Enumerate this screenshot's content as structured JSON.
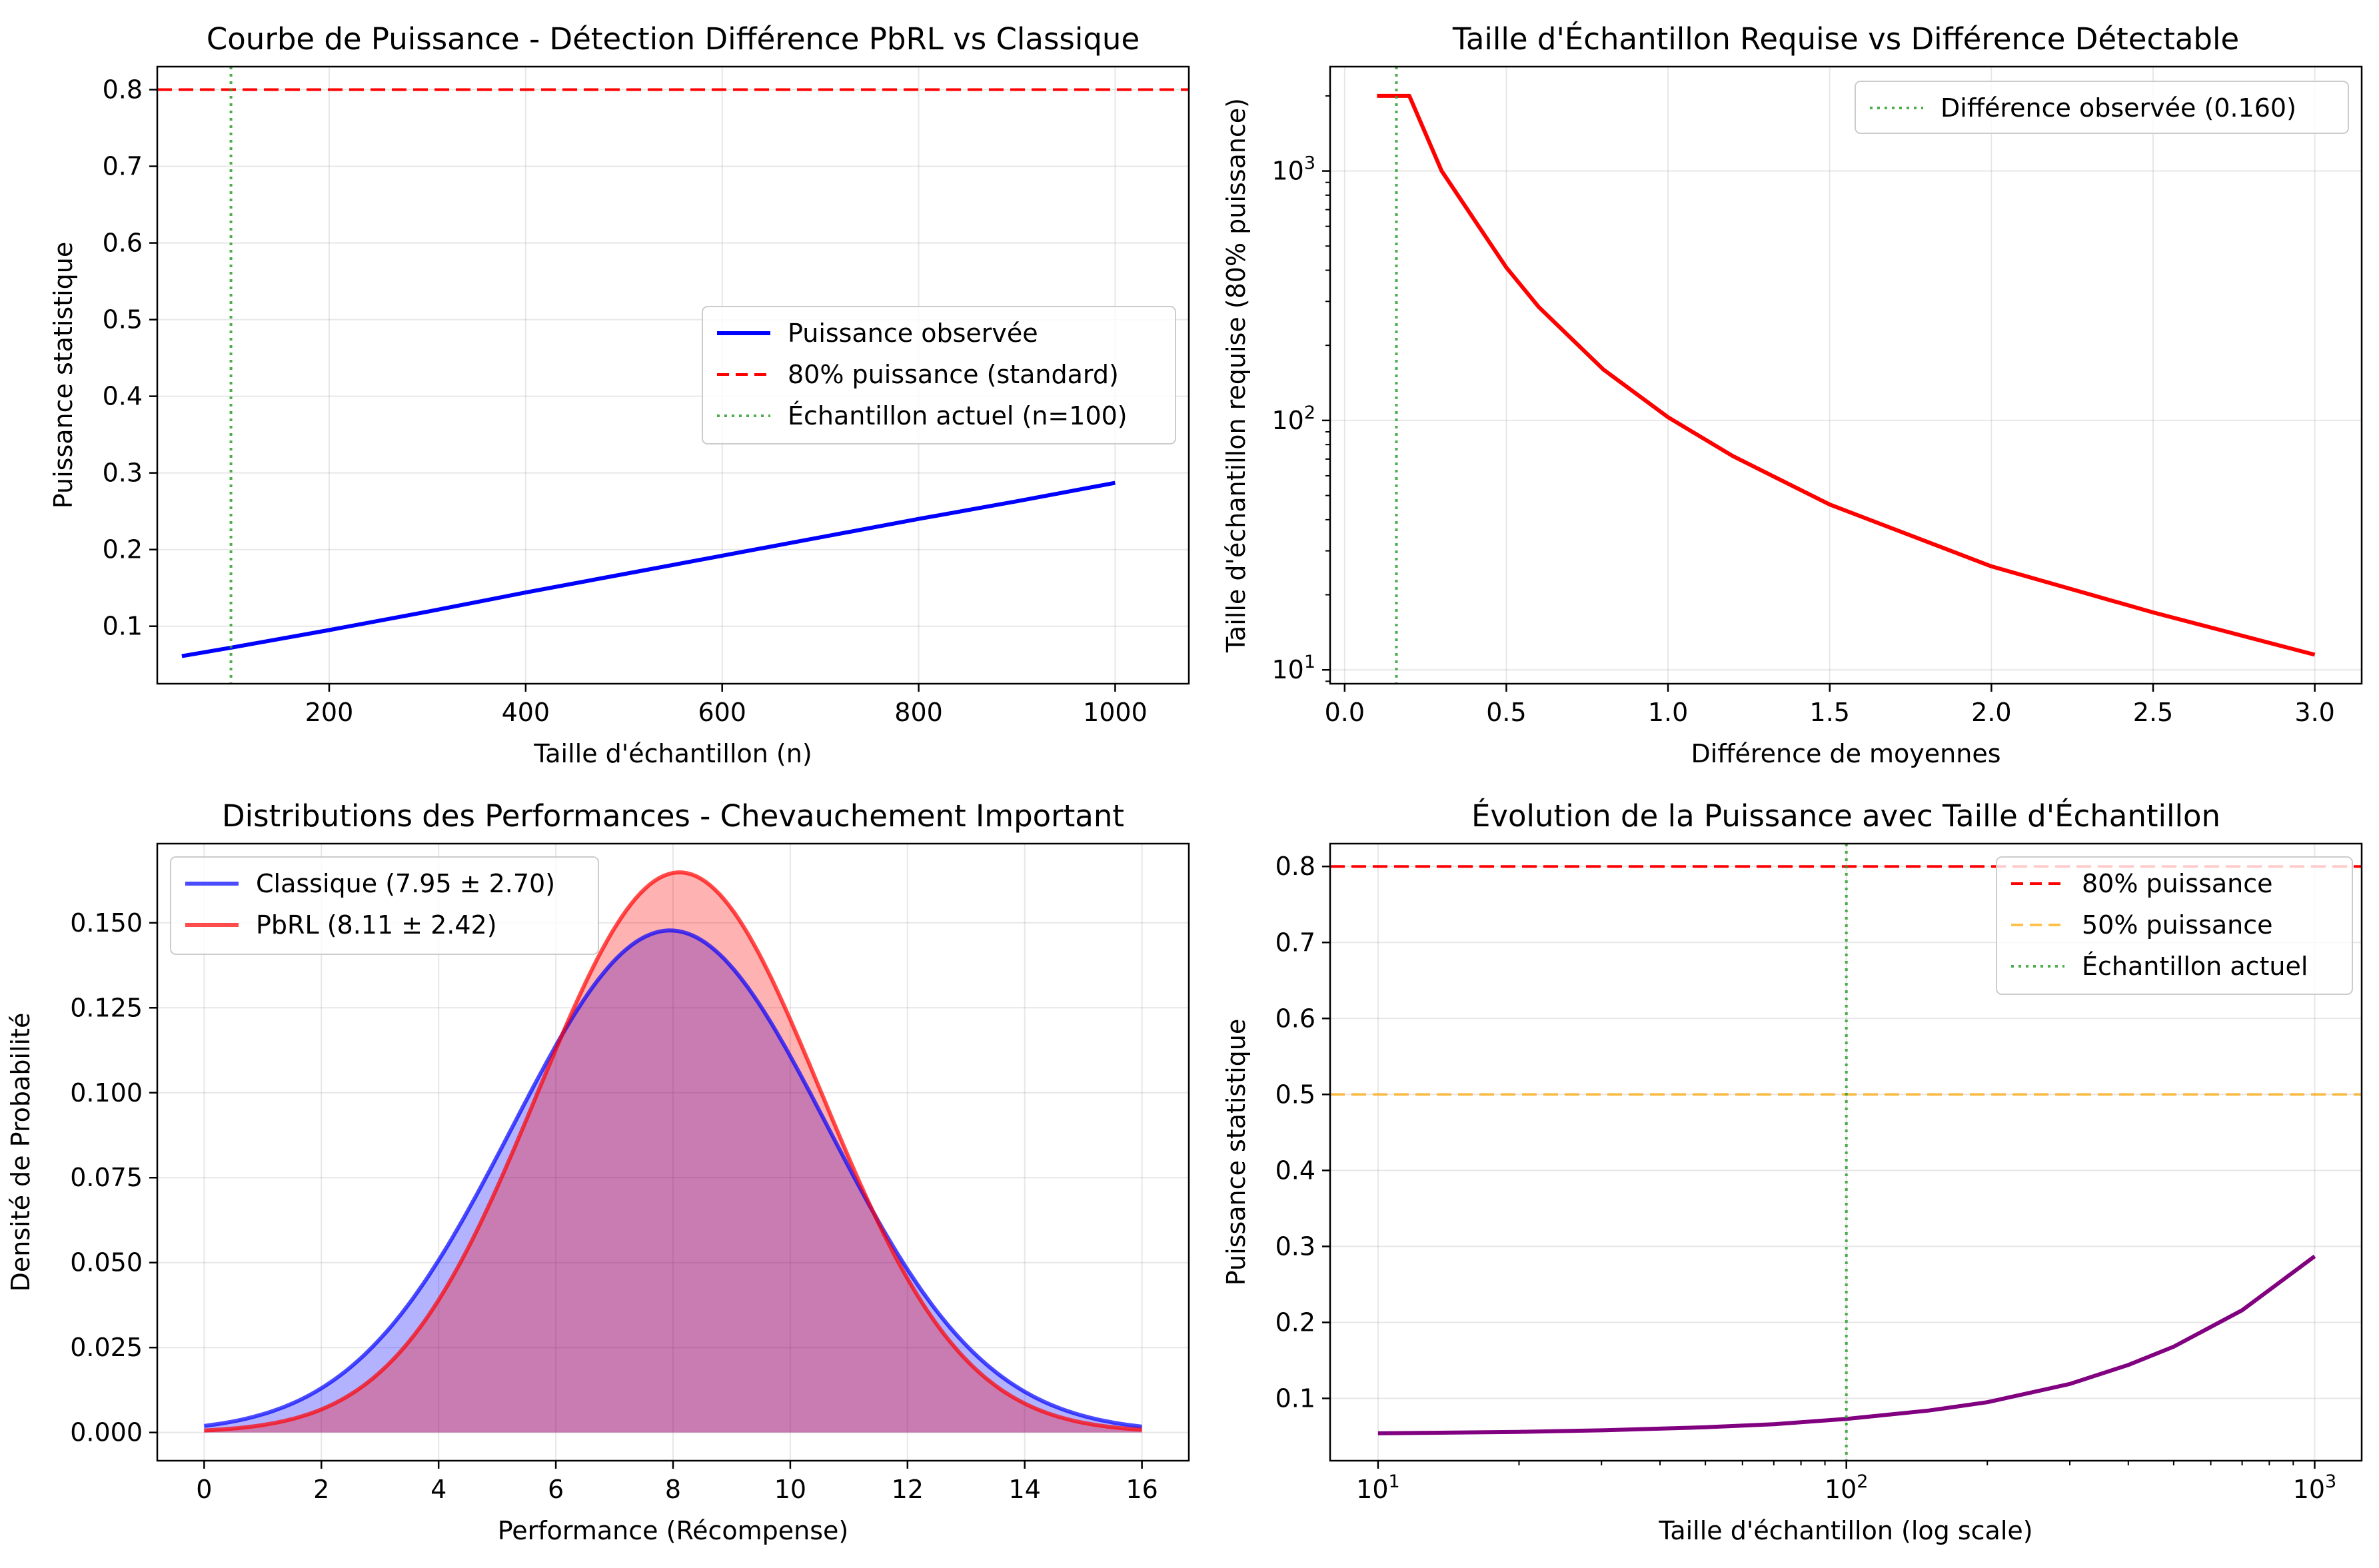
{
  "colors": {
    "blue": "#0000ff",
    "red": "#ff0000",
    "green": "#2ca02c",
    "orange": "#ffa500",
    "purple": "#800080",
    "grid": "#b0b0b0"
  },
  "chart_data": [
    {
      "type": "line",
      "title": "Courbe de Puissance - Détection Différence PbRL vs Classique",
      "xlabel": "Taille d'échantillon (n)",
      "ylabel": "Puissance statistique",
      "xlim": [
        25,
        1075
      ],
      "ylim": [
        0.025,
        0.83
      ],
      "xticks": [
        200,
        400,
        600,
        800,
        1000
      ],
      "yticks": [
        0.1,
        0.2,
        0.3,
        0.4,
        0.5,
        0.6,
        0.7,
        0.8
      ],
      "grid": true,
      "legend_position": "center-right",
      "series": [
        {
          "name": "Puissance observée",
          "color": "#0000ff",
          "style": "solid",
          "x": [
            50,
            100,
            200,
            300,
            400,
            500,
            600,
            700,
            800,
            900,
            1000
          ],
          "y": [
            0.061,
            0.072,
            0.095,
            0.119,
            0.144,
            0.168,
            0.192,
            0.216,
            0.24,
            0.263,
            0.287
          ]
        }
      ],
      "hlines": [
        {
          "name": "80% puissance (standard)",
          "y": 0.8,
          "color": "#ff0000",
          "style": "dashed"
        }
      ],
      "vlines": [
        {
          "name": "Échantillon actuel (n=100)",
          "x": 100,
          "color": "#2ca02c",
          "style": "dotted"
        }
      ]
    },
    {
      "type": "line",
      "title": "Taille d'Échantillon Requise vs Différence Détectable",
      "xlabel": "Différence de moyennes",
      "ylabel": "Taille d'échantillon requise (80% puissance)",
      "xscale": "linear",
      "yscale": "log",
      "xlim": [
        -0.045,
        3.145
      ],
      "ylim": [
        8.8,
        2620
      ],
      "xticks": [
        0.0,
        0.5,
        1.0,
        1.5,
        2.0,
        2.5,
        3.0
      ],
      "xticklabels": [
        "0.0",
        "0.5",
        "1.0",
        "1.5",
        "2.0",
        "2.5",
        "3.0"
      ],
      "yticks": [
        10,
        100,
        1000
      ],
      "yticklabels": [
        "10^1",
        "10^2",
        "10^3"
      ],
      "grid": true,
      "legend_position": "upper right",
      "series": [
        {
          "name": "",
          "color": "#ff0000",
          "style": "solid",
          "x": [
            0.1,
            0.2,
            0.3,
            0.4,
            0.5,
            0.6,
            0.8,
            1.0,
            1.2,
            1.5,
            2.0,
            2.5,
            3.0
          ],
          "y": [
            2000,
            2000,
            1000,
            640,
            410,
            285,
            160,
            103,
            72,
            46,
            26,
            17,
            11.5
          ]
        }
      ],
      "vlines": [
        {
          "name": "Différence observée (0.160)",
          "x": 0.16,
          "color": "#2ca02c",
          "style": "dotted"
        }
      ]
    },
    {
      "type": "area",
      "title": "Distributions des Performances - Chevauchement Important",
      "xlabel": "Performance (Récompense)",
      "ylabel": "Densité de Probabilité",
      "xlim": [
        -0.8,
        16.8
      ],
      "ylim": [
        -0.0083,
        0.1733
      ],
      "xticks": [
        0,
        2,
        4,
        6,
        8,
        10,
        12,
        14,
        16
      ],
      "yticks": [
        0.0,
        0.025,
        0.05,
        0.075,
        0.1,
        0.125,
        0.15
      ],
      "yticklabels": [
        "0.000",
        "0.025",
        "0.050",
        "0.075",
        "0.100",
        "0.125",
        "0.150"
      ],
      "grid": true,
      "legend_position": "upper left",
      "series": [
        {
          "name": "Classique (7.95 ± 2.70)",
          "color": "#0000ff",
          "mean": 7.95,
          "std": 2.7,
          "x_range": [
            0,
            16
          ]
        },
        {
          "name": "PbRL (8.11 ± 2.42)",
          "color": "#ff0000",
          "mean": 8.11,
          "std": 2.42,
          "x_range": [
            0,
            16
          ]
        }
      ]
    },
    {
      "type": "line",
      "title": "Évolution de la Puissance avec Taille d'Échantillon",
      "xlabel": "Taille d'échantillon (log scale)",
      "ylabel": "Puissance statistique",
      "xscale": "log",
      "xlim": [
        7.9,
        1260
      ],
      "ylim": [
        0.018,
        0.83
      ],
      "xticks": [
        10,
        100,
        1000
      ],
      "xticklabels": [
        "10^1",
        "10^2",
        "10^3"
      ],
      "yticks": [
        0.1,
        0.2,
        0.3,
        0.4,
        0.5,
        0.6,
        0.7,
        0.8
      ],
      "grid": true,
      "legend_position": "upper right",
      "series": [
        {
          "name": "",
          "color": "#800080",
          "style": "solid",
          "x": [
            10,
            20,
            30,
            50,
            70,
            100,
            150,
            200,
            300,
            400,
            500,
            700,
            1000
          ],
          "y": [
            0.054,
            0.056,
            0.058,
            0.062,
            0.066,
            0.073,
            0.084,
            0.095,
            0.119,
            0.144,
            0.168,
            0.216,
            0.287
          ]
        }
      ],
      "hlines": [
        {
          "name": "80% puissance",
          "y": 0.8,
          "color": "#ff0000",
          "style": "dashed"
        },
        {
          "name": "50% puissance",
          "y": 0.5,
          "color": "#ffa500",
          "style": "dashed"
        }
      ],
      "vlines": [
        {
          "name": "Échantillon actuel",
          "x": 100,
          "color": "#2ca02c",
          "style": "dotted"
        }
      ]
    }
  ]
}
